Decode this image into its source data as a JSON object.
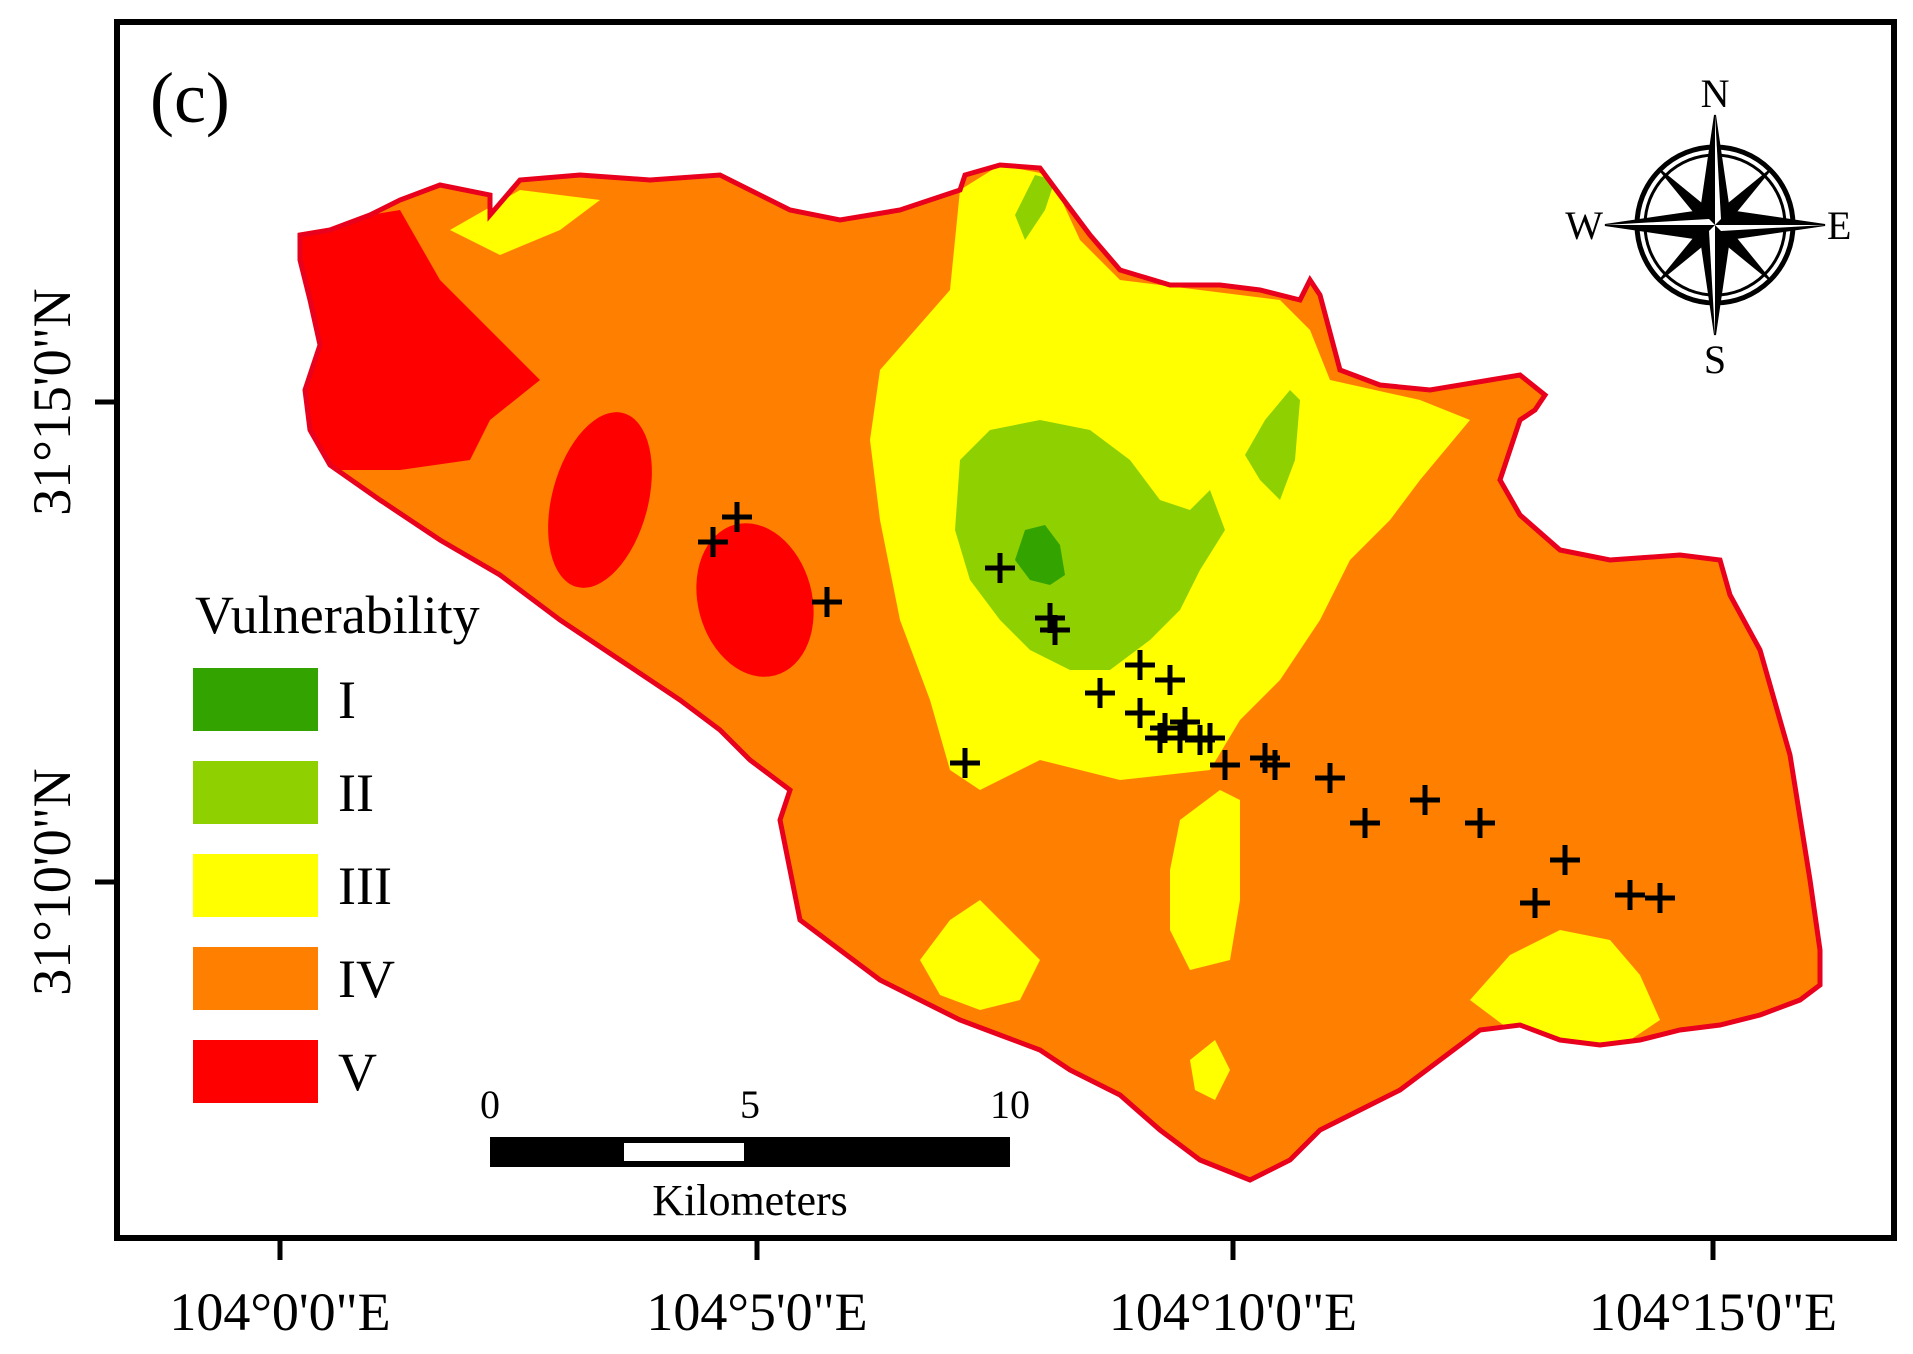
{
  "panel_label": "(c)",
  "legend": {
    "title": "Vulnerability",
    "classes": [
      {
        "label": "I",
        "color": "#33a300"
      },
      {
        "label": "II",
        "color": "#8fd100"
      },
      {
        "label": "III",
        "color": "#ffff00"
      },
      {
        "label": "IV",
        "color": "#ff8000"
      },
      {
        "label": "V",
        "color": "#ff0000"
      }
    ]
  },
  "compass": {
    "north": "N",
    "south": "S",
    "east": "E",
    "west": "W"
  },
  "scale_bar": {
    "ticks": [
      "0",
      "5",
      "10"
    ],
    "unit": "Kilometers"
  },
  "axes": {
    "latitude_labels": [
      "31°15'0\"N",
      "31°10'0\"N"
    ],
    "longitude_labels": [
      "104°0'0\"E",
      "104°5'0\"E",
      "104°10'0\"E",
      "104°15'0\"E"
    ]
  },
  "sample_point_count": 28,
  "colors": {
    "boundary": "#e8001c",
    "frame": "#000000"
  }
}
